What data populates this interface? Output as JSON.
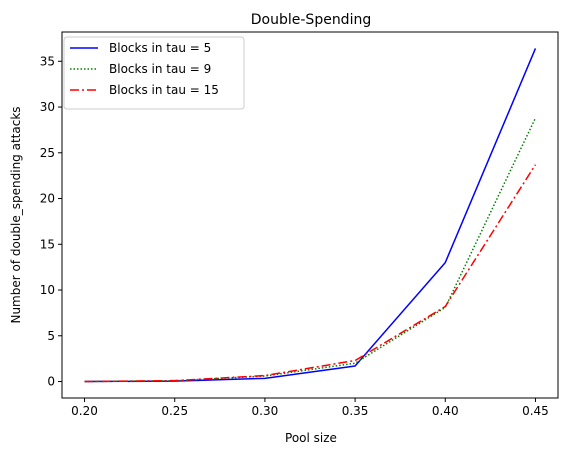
{
  "chart_data": {
    "type": "line",
    "title": "Double-Spending",
    "xlabel": "Pool size",
    "ylabel": "Number of double_spending attacks",
    "x": [
      0.2,
      0.25,
      0.3,
      0.35,
      0.4,
      0.45
    ],
    "x_tick_labels": [
      "0.20",
      "0.25",
      "0.30",
      "0.35",
      "0.40",
      "0.45"
    ],
    "xlim": [
      0.1875,
      0.4625
    ],
    "y_ticks": [
      0,
      5,
      10,
      15,
      20,
      25,
      30,
      35
    ],
    "ylim": [
      -1.8,
      38.2
    ],
    "grid": false,
    "legend_position": "top-left",
    "series": [
      {
        "name": "Blocks in tau = 5",
        "color": "#0000ff",
        "dash": "solid",
        "values": [
          0.0,
          0.05,
          0.35,
          1.7,
          13.0,
          36.4
        ]
      },
      {
        "name": "Blocks in tau = 9",
        "color": "#008000",
        "dash": "dotted",
        "values": [
          0.0,
          0.08,
          0.6,
          2.0,
          8.1,
          28.8
        ]
      },
      {
        "name": "Blocks in tau = 15",
        "color": "#ff0000",
        "dash": "dashdot",
        "values": [
          0.0,
          0.1,
          0.65,
          2.3,
          8.2,
          23.7
        ]
      }
    ]
  }
}
